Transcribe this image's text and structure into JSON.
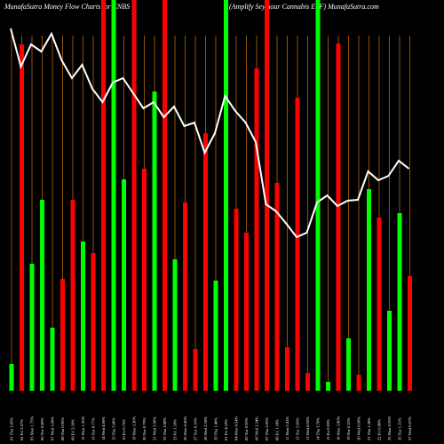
{
  "chart_data": {
    "type": "bar",
    "title": "MunafaSutra  Money Flow  Charts for CNBS",
    "subtitle": "(Amplify Seymour Cannabis ETF) MunafaSutra.com",
    "ylim": [
      0,
      440
    ],
    "categories": [
      "01 Thu 2.05%",
      "02 Fri 3.57%",
      "05 Mon 1.75%",
      "06 Tue 0.88%",
      "07 Wed 1.00%",
      "08 Thu 0.95%",
      "09 Fri 2.10%",
      "12 Mon 1.20%",
      "13 Tue 0.77%",
      "14 Wed 4.80%",
      "15 Thu 5.00%",
      "16 Fri 0.72%",
      "19 Mon 3.30%",
      "20 Tue 0.79%",
      "21 Wed 2.90%",
      "22 Thu 3.88%",
      "23 Fri 1.10%",
      "26 Mon 0.45%",
      "27 Tue 0.10%",
      "28 Wed 2.50%",
      "29 Thu 1.40%",
      "01 Fri 4.10%",
      "04 Mon 0.54%",
      "05 Tue 0.93%",
      "06 Wed 2.34%",
      "07 Thu 3.05%",
      "08 Fri 1.18%",
      "11 Mon 0.41%",
      "12 Tue 2.60%",
      "13 Wed 0.05%",
      "14 Thu 3.70%",
      "15 Fri 0.03%",
      "18 Mon 3.90%",
      "19 Tue 0.35%",
      "20 Wed 0.06%",
      "21 Thu 1.28%",
      "22 Fri 0.90%",
      "25 Mon 0.55%",
      "26 Tue 1.23%",
      "27 Wed 0.67%"
    ],
    "values": [
      30,
      390,
      143,
      215,
      71,
      126,
      215,
      168,
      155,
      440,
      440,
      238,
      440,
      250,
      337,
      440,
      148,
      212,
      47,
      290,
      124,
      440,
      205,
      178,
      363,
      440,
      234,
      49,
      330,
      20,
      440,
      10,
      391,
      59,
      18,
      227,
      195,
      90,
      200,
      129
    ],
    "colors": [
      "#00ff00",
      "#ff0000",
      "#00ff00",
      "#00ff00",
      "#00ff00",
      "#ff0000",
      "#ff0000",
      "#00ff00",
      "#ff0000",
      "#ff0000",
      "#00ff00",
      "#00ff00",
      "#ff0000",
      "#ff0000",
      "#00ff00",
      "#ff0000",
      "#00ff00",
      "#ff0000",
      "#ff0000",
      "#ff0000",
      "#00ff00",
      "#00ff00",
      "#ff0000",
      "#ff0000",
      "#ff0000",
      "#ff0000",
      "#ff0000",
      "#ff0000",
      "#ff0000",
      "#ff0000",
      "#00ff00",
      "#00ff00",
      "#ff0000",
      "#00ff00",
      "#ff0000",
      "#00ff00",
      "#ff0000",
      "#00ff00",
      "#00ff00",
      "#ff0000"
    ],
    "line": {
      "color": "#ffffff",
      "values": [
        408,
        365,
        390,
        382,
        402,
        372,
        352,
        367,
        340,
        325,
        347,
        352,
        335,
        318,
        325,
        308,
        320,
        298,
        302,
        268,
        290,
        332,
        315,
        302,
        280,
        210,
        202,
        188,
        173,
        178,
        212,
        220,
        208,
        214,
        215,
        247,
        237,
        242,
        259,
        250
      ]
    }
  }
}
